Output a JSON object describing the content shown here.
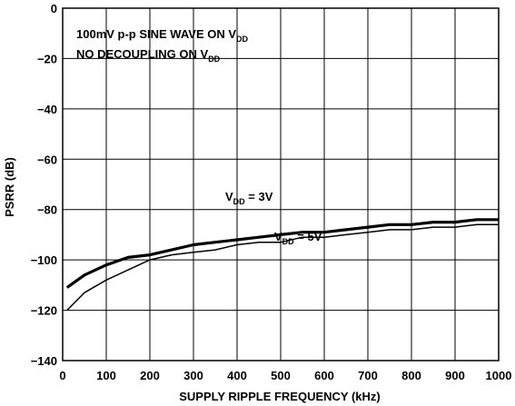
{
  "chart_data": {
    "type": "line",
    "title": "",
    "xlabel": "SUPPLY RIPPLE FREQUENCY (kHz)",
    "ylabel": "PSRR (dB)",
    "xlim": [
      0,
      1000
    ],
    "ylim": [
      -140,
      0
    ],
    "x_ticks": [
      "0",
      "100",
      "200",
      "300",
      "400",
      "500",
      "600",
      "700",
      "800",
      "900",
      "1000"
    ],
    "y_ticks": [
      "0",
      "−20",
      "−40",
      "−60",
      "−80",
      "−100",
      "−120",
      "−140"
    ],
    "grid": true,
    "annotations": [
      {
        "text": "100mV p-p SINE WAVE ON V",
        "sub": "DD"
      },
      {
        "text": "NO DECOUPLING ON V",
        "sub": "DD"
      }
    ],
    "series": [
      {
        "name": "V",
        "name_sub": "DD",
        "name_suffix": " = 3V",
        "x": [
          10,
          50,
          100,
          150,
          200,
          250,
          300,
          350,
          400,
          450,
          500,
          550,
          600,
          650,
          700,
          750,
          800,
          850,
          900,
          950,
          1000
        ],
        "y": [
          -111,
          -106,
          -102,
          -99,
          -98,
          -96,
          -94,
          -93,
          -92,
          -91,
          -90,
          -89,
          -89,
          -88,
          -87,
          -86,
          -86,
          -85,
          -85,
          -84,
          -84
        ]
      },
      {
        "name": "V",
        "name_sub": "DD",
        "name_suffix": " = 5V",
        "x": [
          10,
          50,
          100,
          150,
          200,
          250,
          300,
          350,
          400,
          450,
          500,
          550,
          600,
          650,
          700,
          750,
          800,
          850,
          900,
          950,
          1000
        ],
        "y": [
          -120,
          -113,
          -108,
          -104,
          -100,
          -98,
          -97,
          -96,
          -94,
          -93,
          -93,
          -91,
          -91,
          -90,
          -89,
          -88,
          -88,
          -87,
          -87,
          -86,
          -86
        ]
      }
    ]
  }
}
